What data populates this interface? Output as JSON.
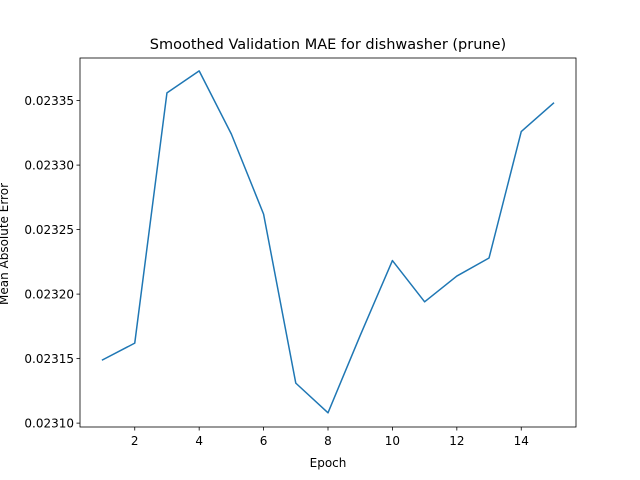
{
  "chart_data": {
    "type": "line",
    "title": "Smoothed Validation MAE for dishwasher (prune)",
    "xlabel": "Epoch",
    "ylabel": "Mean Absolute Error",
    "xlim": [
      0.3,
      15.7
    ],
    "ylim": [
      0.023097,
      0.023383
    ],
    "xticks": [
      2,
      4,
      6,
      8,
      10,
      12,
      14
    ],
    "yticks": [
      0.0231,
      0.02315,
      0.0232,
      0.02325,
      0.0233,
      0.02335
    ],
    "ytick_labels": [
      "0.02310",
      "0.02315",
      "0.02320",
      "0.02325",
      "0.02330",
      "0.02335"
    ],
    "grid": false,
    "series": [
      {
        "color": "#1f77b4",
        "x": [
          1,
          2,
          3,
          4,
          5,
          6,
          7,
          8,
          9,
          10,
          11,
          12,
          13,
          14,
          15
        ],
        "y": [
          0.023149,
          0.023162,
          0.023356,
          0.023373,
          0.023324,
          0.023262,
          0.023131,
          0.023108,
          0.023168,
          0.023226,
          0.023194,
          0.023214,
          0.023228,
          0.023326,
          0.023348
        ]
      }
    ]
  }
}
